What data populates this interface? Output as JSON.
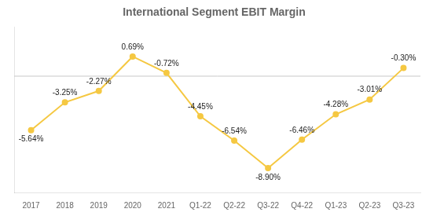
{
  "chart_data": {
    "type": "line",
    "title": "International Segment EBIT Margin",
    "categories": [
      "2017",
      "2018",
      "2019",
      "2020",
      "2021",
      "Q1-22",
      "Q2-22",
      "Q3-22",
      "Q4-22",
      "Q1-23",
      "Q2-23",
      "Q3-23"
    ],
    "values": [
      -5.64,
      -3.25,
      -2.27,
      0.69,
      -0.72,
      -4.45,
      -6.54,
      -8.9,
      -6.46,
      -4.28,
      -3.01,
      -0.3
    ],
    "value_labels": [
      "-5.64%",
      "-3.25%",
      "-2.27%",
      "0.69%",
      "-0.72%",
      "-4.45%",
      "-6.54%",
      "-8.90%",
      "-6.46%",
      "-4.28%",
      "-3.01%",
      "-0.30%"
    ],
    "color": "#F5C842",
    "marker": "circle",
    "ylim": [
      -11.0,
      3.2
    ],
    "yticks": [],
    "tick_labels": "x",
    "grid": false,
    "data_labels": true,
    "hline": {
      "value": -1.0,
      "color": "#c8c8c8"
    }
  }
}
